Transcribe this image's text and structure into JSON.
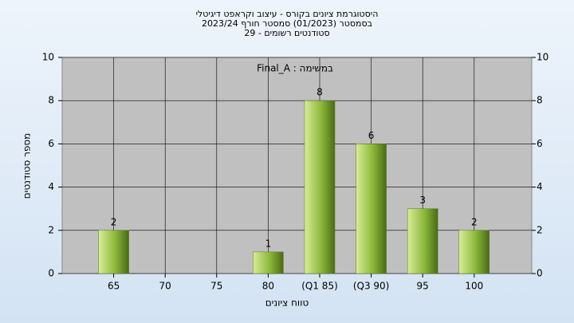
{
  "chart_data": {
    "type": "bar",
    "title": [
      "היסטוגרמת ציונים בקורס - עיצוב וקראפט דיגיטלי",
      "בסמסטר (01/2023) סמסטר חורף 2023/24",
      "סטודנטים רשומים - 29"
    ],
    "annotation": "Final_A : במשימה",
    "x_label": "טווח ציונים",
    "y_label": "מספר סטודנטים",
    "categories": [
      "65",
      "70",
      "75",
      "80",
      "(Q1 85)",
      "(Q3 90)",
      "95",
      "100"
    ],
    "values": [
      2,
      0,
      0,
      1,
      8,
      6,
      3,
      2
    ],
    "value_labels": [
      "2",
      null,
      null,
      "1",
      "8",
      "6",
      "3",
      "2"
    ],
    "color": "#8cb83a",
    "ylim": [
      0,
      10
    ],
    "yticks": [
      0,
      2,
      4,
      6,
      8,
      10
    ],
    "y2lim": [
      0,
      10
    ],
    "y2ticks": [
      0,
      2,
      4,
      6,
      8,
      10
    ],
    "grid": true
  }
}
